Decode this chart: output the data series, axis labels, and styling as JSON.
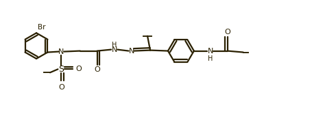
{
  "background_color": "#ffffff",
  "line_color": "#2a2000",
  "line_width": 1.6,
  "figsize": [
    4.9,
    1.67
  ],
  "dpi": 100,
  "xlim": [
    0,
    9.8
  ],
  "ylim": [
    0,
    3.34
  ]
}
